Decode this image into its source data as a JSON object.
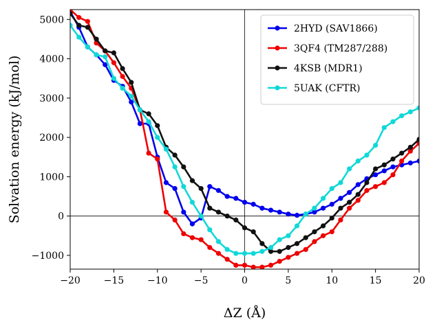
{
  "chart_data": {
    "type": "line",
    "title": "",
    "xlabel": "ΔZ (Å)",
    "ylabel": "Solvation energy (kJ/mol)",
    "xlim": [
      -20,
      20
    ],
    "ylim": [
      -1350,
      5250
    ],
    "xticks": [
      -20,
      -15,
      -10,
      -5,
      0,
      5,
      10,
      15,
      20
    ],
    "xtick_labels": [
      "−20",
      "−15",
      "−10",
      "−5",
      "0",
      "5",
      "10",
      "15",
      "20"
    ],
    "yticks": [
      -1000,
      0,
      1000,
      2000,
      3000,
      4000,
      5000
    ],
    "ytick_labels": [
      "−1000",
      "0",
      "1000",
      "2000",
      "3000",
      "4000",
      "5000"
    ],
    "reference_lines": {
      "x": 0,
      "y": 0
    },
    "grid": false,
    "legend_position": "top-right",
    "series": [
      {
        "name": "2HYD (SAV1866)",
        "color": "#0000ee",
        "x": [
          -20,
          -19,
          -18,
          -17,
          -16,
          -15,
          -14,
          -13,
          -12,
          -11,
          -10,
          -9,
          -8,
          -7,
          -6,
          -5,
          -4,
          -3,
          -2,
          -1,
          0,
          1,
          2,
          3,
          4,
          5,
          6,
          7,
          8,
          9,
          10,
          11,
          12,
          13,
          14,
          15,
          16,
          17,
          18,
          19,
          20
        ],
        "y": [
          5200,
          4800,
          4300,
          4100,
          3850,
          3450,
          3300,
          2900,
          2350,
          2350,
          1500,
          850,
          700,
          100,
          -200,
          -50,
          750,
          650,
          500,
          450,
          350,
          300,
          200,
          150,
          100,
          50,
          20,
          50,
          100,
          200,
          300,
          450,
          600,
          800,
          950,
          1050,
          1150,
          1250,
          1300,
          1350,
          1400
        ]
      },
      {
        "name": "3QF4 (TM287/288)",
        "color": "#ee0000",
        "x": [
          -20,
          -19,
          -18,
          -17,
          -16,
          -15,
          -14,
          -13,
          -12,
          -11,
          -10,
          -9,
          -8,
          -7,
          -6,
          -5,
          -4,
          -3,
          -2,
          -1,
          0,
          1,
          2,
          3,
          4,
          5,
          6,
          7,
          8,
          9,
          10,
          11,
          12,
          13,
          14,
          15,
          16,
          17,
          18,
          19,
          20
        ],
        "y": [
          5250,
          5050,
          4950,
          4400,
          4200,
          3900,
          3550,
          3250,
          2700,
          1600,
          1450,
          100,
          -100,
          -450,
          -550,
          -600,
          -800,
          -950,
          -1100,
          -1250,
          -1250,
          -1300,
          -1300,
          -1250,
          -1150,
          -1050,
          -950,
          -850,
          -650,
          -500,
          -400,
          -100,
          200,
          400,
          650,
          750,
          850,
          1050,
          1400,
          1650,
          1850
        ]
      },
      {
        "name": "4KSB (MDR1)",
        "color": "#111111",
        "x": [
          -20,
          -19,
          -18,
          -17,
          -16,
          -15,
          -14,
          -13,
          -12,
          -11,
          -10,
          -9,
          -8,
          -7,
          -6,
          -5,
          -4,
          -3,
          -2,
          -1,
          0,
          1,
          2,
          3,
          4,
          5,
          6,
          7,
          8,
          9,
          10,
          11,
          12,
          13,
          14,
          15,
          16,
          17,
          18,
          19,
          20
        ],
        "y": [
          5150,
          4850,
          4800,
          4500,
          4200,
          4150,
          3750,
          3400,
          2700,
          2600,
          2300,
          1750,
          1550,
          1250,
          900,
          700,
          200,
          100,
          0,
          -100,
          -300,
          -400,
          -700,
          -900,
          -900,
          -800,
          -700,
          -550,
          -400,
          -250,
          -50,
          200,
          350,
          550,
          850,
          1200,
          1300,
          1450,
          1600,
          1750,
          1950
        ]
      },
      {
        "name": "5UAK (CFTR)",
        "color": "#11d8d8",
        "x": [
          -20,
          -19,
          -18,
          -17,
          -16,
          -15,
          -14,
          -13,
          -12,
          -11,
          -10,
          -9,
          -8,
          -7,
          -6,
          -5,
          -4,
          -3,
          -2,
          -1,
          0,
          1,
          2,
          3,
          4,
          5,
          6,
          7,
          8,
          9,
          10,
          11,
          12,
          13,
          14,
          15,
          16,
          17,
          18,
          19,
          20
        ],
        "y": [
          4850,
          4550,
          4300,
          4100,
          4050,
          3500,
          3250,
          3050,
          2700,
          2400,
          2000,
          1700,
          1250,
          750,
          350,
          0,
          -350,
          -650,
          -850,
          -950,
          -950,
          -950,
          -900,
          -800,
          -600,
          -500,
          -250,
          50,
          200,
          450,
          700,
          850,
          1200,
          1400,
          1550,
          1800,
          2250,
          2400,
          2550,
          2650,
          2750
        ]
      }
    ]
  }
}
